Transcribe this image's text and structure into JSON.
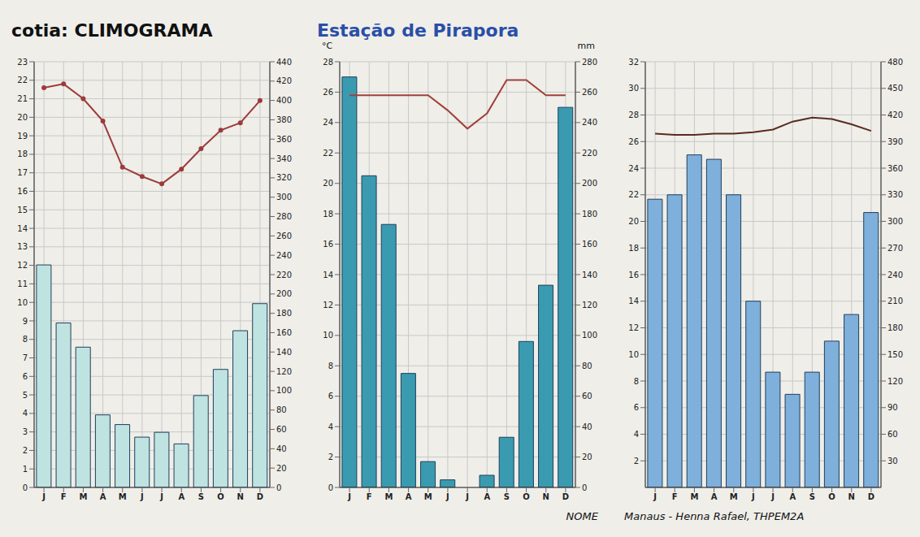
{
  "chart_data": [
    {
      "type": "bar",
      "title": "cotia: CLIMOGRAMA",
      "categories": [
        "J",
        "F",
        "M",
        "A",
        "M",
        "J",
        "J",
        "A",
        "S",
        "O",
        "N",
        "D"
      ],
      "series": [
        {
          "type": "line",
          "axis": "y",
          "color": "#9c3b3b",
          "marker": "dot",
          "values": [
            21.6,
            21.8,
            21.0,
            19.8,
            17.3,
            16.8,
            16.4,
            17.2,
            18.3,
            19.3,
            19.7,
            20.9
          ]
        },
        {
          "type": "bar",
          "axis": "y2",
          "color": "#bfe3e0",
          "values": [
            230,
            170,
            145,
            75,
            65,
            52,
            57,
            45,
            95,
            122,
            162,
            190
          ]
        }
      ],
      "ylim": [
        0,
        23
      ],
      "yticks": [
        0,
        1,
        2,
        3,
        4,
        5,
        6,
        7,
        8,
        9,
        10,
        11,
        12,
        13,
        14,
        15,
        16,
        17,
        18,
        19,
        20,
        21,
        22,
        23
      ],
      "y2lim": [
        0,
        440
      ],
      "y2ticks": [
        0,
        20,
        40,
        60,
        80,
        100,
        120,
        140,
        160,
        180,
        200,
        220,
        240,
        260,
        280,
        300,
        320,
        340,
        360,
        380,
        400,
        420,
        440
      ],
      "grid": true
    },
    {
      "type": "bar",
      "title": "Estação de Pirapora",
      "ylabel": "°C",
      "y2label": "mm",
      "caption": "NOME",
      "categories": [
        "J",
        "F",
        "M",
        "A",
        "M",
        "J",
        "J",
        "A",
        "S",
        "O",
        "N",
        "D"
      ],
      "series": [
        {
          "type": "line",
          "axis": "y",
          "color": "#a0403a",
          "marker": "none",
          "values": [
            25.8,
            25.8,
            25.8,
            25.8,
            25.8,
            24.8,
            23.6,
            24.6,
            26.8,
            26.8,
            25.8,
            25.8
          ]
        },
        {
          "type": "bar",
          "axis": "y2",
          "color": "#3a9bb0",
          "values": [
            270,
            205,
            173,
            75,
            17,
            5,
            0,
            8,
            33,
            96,
            133,
            250
          ]
        }
      ],
      "ylim": [
        0,
        28
      ],
      "yticks": [
        0,
        2,
        4,
        6,
        8,
        10,
        12,
        14,
        16,
        18,
        20,
        22,
        24,
        26,
        28
      ],
      "y2lim": [
        0,
        280
      ],
      "y2ticks": [
        0,
        20,
        40,
        60,
        80,
        100,
        120,
        140,
        160,
        180,
        200,
        220,
        240,
        260,
        280
      ],
      "grid": true
    },
    {
      "type": "bar",
      "caption": "Manaus - Henna Rafael, THPEM2A",
      "categories": [
        "J",
        "F",
        "M",
        "A",
        "M",
        "J",
        "J",
        "A",
        "S",
        "O",
        "N",
        "D"
      ],
      "series": [
        {
          "type": "line",
          "axis": "y",
          "color": "#5a2a20",
          "marker": "none",
          "values": [
            26.6,
            26.5,
            26.5,
            26.6,
            26.6,
            26.7,
            26.9,
            27.5,
            27.8,
            27.7,
            27.3,
            26.8
          ]
        },
        {
          "type": "bar",
          "axis": "y2",
          "color": "#7fb0dc",
          "values": [
            325,
            330,
            375,
            370,
            330,
            210,
            130,
            105,
            130,
            165,
            195,
            310
          ]
        }
      ],
      "ylim": [
        0,
        32
      ],
      "yticks": [
        2,
        4,
        6,
        8,
        10,
        12,
        14,
        16,
        18,
        20,
        22,
        24,
        26,
        28,
        30,
        32
      ],
      "y2lim": [
        0,
        480
      ],
      "y2ticks": [
        30,
        60,
        90,
        120,
        150,
        180,
        210,
        240,
        270,
        300,
        330,
        360,
        390,
        420,
        450,
        480
      ],
      "grid": true
    }
  ]
}
